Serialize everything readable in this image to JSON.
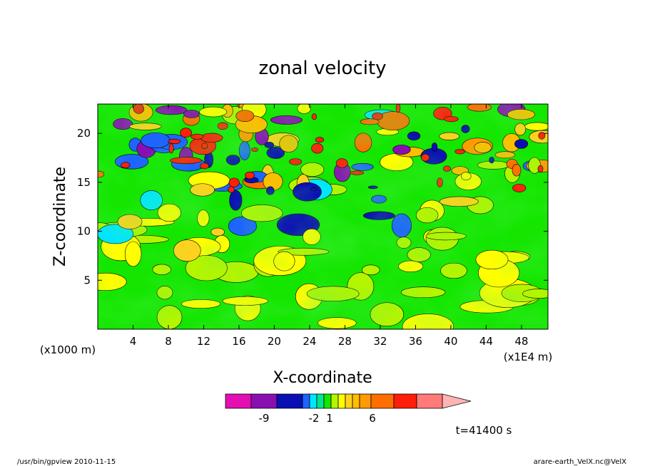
{
  "chart_data": {
    "type": "heatmap",
    "title": "zonal velocity",
    "xlabel": "X-coordinate",
    "ylabel": "Z-coordinate",
    "x_unit": "(x1E4 m)",
    "y_unit": "(x1000 m)",
    "xlim": [
      0,
      51
    ],
    "ylim": [
      0,
      23
    ],
    "x_ticks": [
      4,
      8,
      12,
      16,
      20,
      24,
      28,
      32,
      36,
      40,
      44,
      48
    ],
    "y_ticks": [
      5,
      10,
      15,
      20
    ],
    "colorbar": {
      "colors": [
        "#e30fb3",
        "#8a0fb3",
        "#0a0fb3",
        "#1e64ff",
        "#00e6ff",
        "#00e68c",
        "#14e600",
        "#b4f500",
        "#ffff00",
        "#ffd21e",
        "#ffbe00",
        "#ff9b00",
        "#ff6e00",
        "#ff1e0a",
        "#ff7a78"
      ],
      "extend_color": "#ffb4b4",
      "tick_labels": [
        "-9",
        "-2",
        "1",
        "6"
      ]
    },
    "annotation": "t=41400 s"
  },
  "footer": {
    "left": "/usr/bin/gpview   2010-11-15",
    "right": "arare-earth_VelX.nc@VelX"
  }
}
